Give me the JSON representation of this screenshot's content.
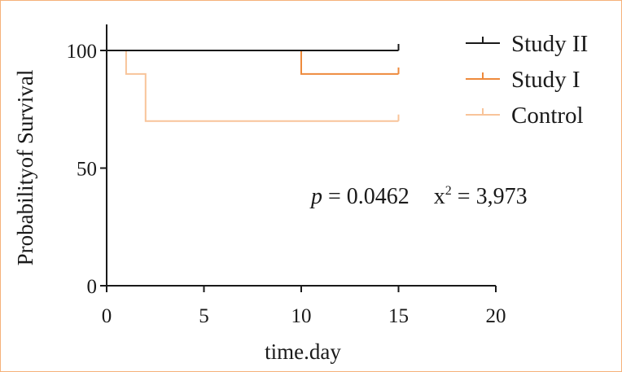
{
  "chart_data": {
    "type": "line",
    "subtype": "kaplan-meier step",
    "xlabel": "time.day",
    "ylabel": "Probabilityof Survival",
    "xlim": [
      0,
      20
    ],
    "ylim": [
      0,
      110
    ],
    "x_ticks": [
      "0",
      "5",
      "10",
      "15",
      "20"
    ],
    "y_ticks": [
      "0",
      "50",
      "100"
    ],
    "grid": false,
    "legend_position": "top-right",
    "series": [
      {
        "name": "Study II",
        "color": "#1a1a1a",
        "points": [
          [
            0,
            100
          ],
          [
            15,
            100
          ]
        ],
        "censored": [
          [
            15,
            100
          ]
        ]
      },
      {
        "name": "Study I",
        "color": "#ee8a3c",
        "points": [
          [
            10,
            100
          ],
          [
            10,
            90
          ],
          [
            15,
            90
          ]
        ],
        "censored": [
          [
            15,
            90
          ]
        ]
      },
      {
        "name": "Control",
        "color": "#f8c49a",
        "points": [
          [
            1,
            100
          ],
          [
            1,
            90
          ],
          [
            2,
            90
          ],
          [
            2,
            70
          ],
          [
            15,
            70
          ]
        ],
        "censored": [
          [
            15,
            70
          ]
        ]
      }
    ],
    "annotation": {
      "p_symbol": "p",
      "p_text": " = 0.0462",
      "chi_base": "x",
      "chi_sup": "2",
      "chi_text": " = 3,973"
    }
  }
}
